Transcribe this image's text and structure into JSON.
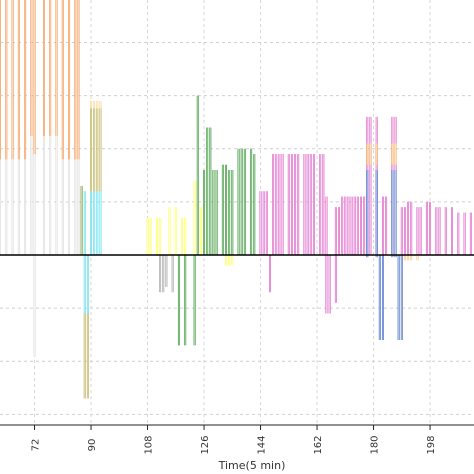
{
  "chart_data": {
    "type": "bar",
    "xlabel": "Time(5 min)",
    "ylabel": "",
    "title": "",
    "x_ticks": [
      72,
      90,
      108,
      126,
      144,
      162,
      180,
      198
    ],
    "xlim": [
      61,
      212
    ],
    "ylim": [
      -1.6,
      2.4
    ],
    "grid": "dashed",
    "legend": "none",
    "zero_line": true,
    "series": [
      {
        "color": "#f08a3c",
        "values": [
          [
            61,
            0.9,
            2.4
          ],
          [
            63,
            0.9,
            2.4
          ],
          [
            65,
            0.9,
            2.4
          ],
          [
            67,
            0.9,
            2.4
          ],
          [
            69,
            0.9,
            2.4
          ],
          [
            71,
            1.12,
            2.4
          ],
          [
            72,
            0.88,
            2.4
          ],
          [
            75,
            1.12,
            2.4
          ],
          [
            77,
            1.12,
            2.4
          ],
          [
            79,
            1.12,
            2.4
          ],
          [
            81,
            0.9,
            2.4
          ],
          [
            83,
            0.9,
            2.4
          ],
          [
            85,
            0.9,
            2.4
          ],
          [
            86,
            0.9,
            2.4
          ]
        ]
      },
      {
        "color": "#d9d9d9",
        "values": [
          [
            61,
            0,
            0.9
          ],
          [
            63,
            0,
            0.9
          ],
          [
            65,
            0,
            0.9
          ],
          [
            67,
            0,
            0.9
          ],
          [
            69,
            0,
            0.9
          ],
          [
            71,
            0,
            1.12
          ],
          [
            72,
            0,
            0.95
          ],
          [
            72,
            0,
            -0.95
          ],
          [
            75,
            0,
            1.12
          ],
          [
            77,
            0,
            1.12
          ],
          [
            79,
            0,
            1.12
          ],
          [
            81,
            0,
            0.9
          ],
          [
            83,
            0,
            0.9
          ],
          [
            85,
            0,
            0.9
          ],
          [
            86,
            0,
            0.9
          ]
        ]
      },
      {
        "color": "#6b8e23",
        "values": [
          [
            87,
            0,
            0.65
          ]
        ]
      },
      {
        "color": "#4dd9ec",
        "values": [
          [
            88,
            0,
            0.6
          ],
          [
            88,
            0,
            -0.55
          ],
          [
            89,
            0,
            -0.55
          ],
          [
            90,
            0,
            0.6
          ],
          [
            91,
            0,
            0.6
          ],
          [
            92,
            0,
            0.6
          ],
          [
            93,
            0,
            0.6
          ]
        ]
      },
      {
        "color": "#b5a642",
        "values": [
          [
            88,
            -0.55,
            -1.35
          ],
          [
            89,
            -0.55,
            -1.35
          ],
          [
            90,
            0.6,
            1.38
          ],
          [
            91,
            0.6,
            1.38
          ],
          [
            92,
            0.6,
            1.38
          ],
          [
            93,
            0.6,
            1.38
          ]
        ]
      },
      {
        "color": "#f6d08a",
        "values": [
          [
            90,
            1.38,
            1.45
          ],
          [
            91,
            1.38,
            1.45
          ],
          [
            92,
            1.38,
            1.45
          ],
          [
            93,
            1.38,
            1.45
          ]
        ]
      },
      {
        "color": "#ffff4d",
        "values": [
          [
            108,
            0,
            0.35
          ],
          [
            109,
            0,
            0.35
          ],
          [
            111,
            0,
            0.35
          ],
          [
            112,
            0,
            0.35
          ],
          [
            115,
            0,
            0.45
          ],
          [
            117,
            0,
            0.45
          ],
          [
            119,
            0,
            0.35
          ],
          [
            120,
            0,
            0.35
          ],
          [
            123,
            0,
            0.7
          ],
          [
            124,
            0,
            0.7
          ],
          [
            125,
            0,
            0.45
          ],
          [
            126,
            0,
            0.45
          ],
          [
            133,
            0,
            -0.1
          ],
          [
            134,
            0,
            -0.1
          ],
          [
            135,
            0,
            -0.1
          ]
        ]
      },
      {
        "color": "#999999",
        "values": [
          [
            112,
            0,
            -0.35
          ],
          [
            113,
            0,
            -0.35
          ],
          [
            114,
            0,
            -0.3
          ],
          [
            116,
            0,
            -0.35
          ]
        ]
      },
      {
        "color": "#228b22",
        "values": [
          [
            118,
            0,
            -0.85
          ],
          [
            120,
            0,
            -0.85
          ],
          [
            123,
            0,
            -0.85
          ],
          [
            124,
            0,
            1.5
          ],
          [
            126,
            0,
            0.8
          ],
          [
            127,
            0,
            1.2
          ],
          [
            128,
            0,
            1.2
          ],
          [
            129,
            0,
            0.8
          ],
          [
            130,
            0,
            0.8
          ],
          [
            132,
            0,
            0.85
          ],
          [
            133,
            0,
            0.85
          ],
          [
            134,
            0,
            0.8
          ],
          [
            135,
            0,
            0.8
          ],
          [
            137,
            0,
            1
          ],
          [
            138,
            0,
            1
          ],
          [
            139,
            0,
            1
          ],
          [
            141,
            0,
            1
          ],
          [
            142,
            0,
            0.95
          ]
        ]
      },
      {
        "color": "#da4fc0",
        "values": [
          [
            144,
            0,
            0.6
          ],
          [
            145,
            0,
            0.6
          ],
          [
            146,
            0,
            0.6
          ],
          [
            147,
            0,
            -0.35
          ],
          [
            148,
            0,
            0.95
          ],
          [
            149,
            0,
            0.95
          ],
          [
            150,
            0,
            0.95
          ],
          [
            151,
            0,
            0.95
          ],
          [
            153,
            0,
            0.95
          ],
          [
            154,
            0,
            0.95
          ],
          [
            155,
            0,
            0.95
          ],
          [
            156,
            0,
            0.95
          ],
          [
            158,
            0,
            0.95
          ],
          [
            159,
            0,
            0.95
          ],
          [
            160,
            0,
            0.95
          ],
          [
            161,
            0,
            0.95
          ],
          [
            163,
            0,
            0.95
          ],
          [
            164,
            0,
            0.95
          ],
          [
            165,
            0,
            0.55
          ],
          [
            165,
            0,
            -0.55
          ],
          [
            166,
            0,
            -0.55
          ],
          [
            168,
            0,
            0.45
          ],
          [
            168,
            0,
            -0.45
          ],
          [
            169,
            0,
            0.45
          ],
          [
            170,
            0,
            0.55
          ],
          [
            171,
            0,
            0.55
          ],
          [
            172,
            0,
            0.55
          ],
          [
            173,
            0,
            0.55
          ],
          [
            174,
            0,
            0.55
          ],
          [
            175,
            0,
            0.55
          ],
          [
            176,
            0,
            0.55
          ],
          [
            177,
            0,
            0.55
          ],
          [
            178,
            0,
            1.3
          ],
          [
            179,
            0,
            1.3
          ],
          [
            181,
            0,
            1.3
          ],
          [
            183,
            0,
            0.55
          ],
          [
            184,
            0,
            0.55
          ],
          [
            186,
            0,
            1.3
          ],
          [
            187,
            0,
            1.3
          ],
          [
            189,
            0,
            0.45
          ],
          [
            190,
            0,
            0.45
          ],
          [
            191,
            0,
            0.5
          ],
          [
            192,
            0,
            0.5
          ],
          [
            194,
            0,
            0.45
          ],
          [
            195,
            0,
            0.45
          ],
          [
            197,
            0,
            0.5
          ],
          [
            198,
            0,
            0.5
          ],
          [
            200,
            0,
            0.45
          ],
          [
            201,
            0,
            0.45
          ],
          [
            203,
            0,
            0.45
          ],
          [
            205,
            0,
            0.45
          ],
          [
            207,
            0,
            0.4
          ],
          [
            209,
            0,
            0.4
          ],
          [
            211,
            0,
            0.4
          ]
        ]
      },
      {
        "color": "#f6c272",
        "values": [
          [
            189,
            0,
            -0.05
          ],
          [
            190,
            0,
            -0.05
          ],
          [
            191,
            0,
            -0.05
          ],
          [
            192,
            0,
            -0.05
          ],
          [
            194,
            0,
            -0.05
          ]
        ]
      },
      {
        "color": "#f7a540",
        "values": [
          [
            178,
            0.85,
            1.05
          ],
          [
            179,
            0.85,
            1.05
          ],
          [
            181,
            0.85,
            1.05
          ],
          [
            186,
            0.85,
            1.05
          ],
          [
            187,
            0.85,
            1.05
          ]
        ]
      },
      {
        "color": "#2e5cc4",
        "values": [
          [
            178,
            0,
            0.8
          ],
          [
            178,
            0,
            -0.02
          ],
          [
            181,
            0,
            0.8
          ],
          [
            181,
            0,
            -0.02
          ],
          [
            182,
            0,
            -0.8
          ],
          [
            183,
            0,
            -0.8
          ],
          [
            186,
            0,
            0.8
          ],
          [
            186,
            0,
            -0.02
          ],
          [
            187,
            0,
            0.8
          ],
          [
            187,
            0,
            -0.02
          ],
          [
            188,
            0,
            -0.8
          ],
          [
            189,
            0,
            -0.8
          ]
        ]
      }
    ]
  }
}
